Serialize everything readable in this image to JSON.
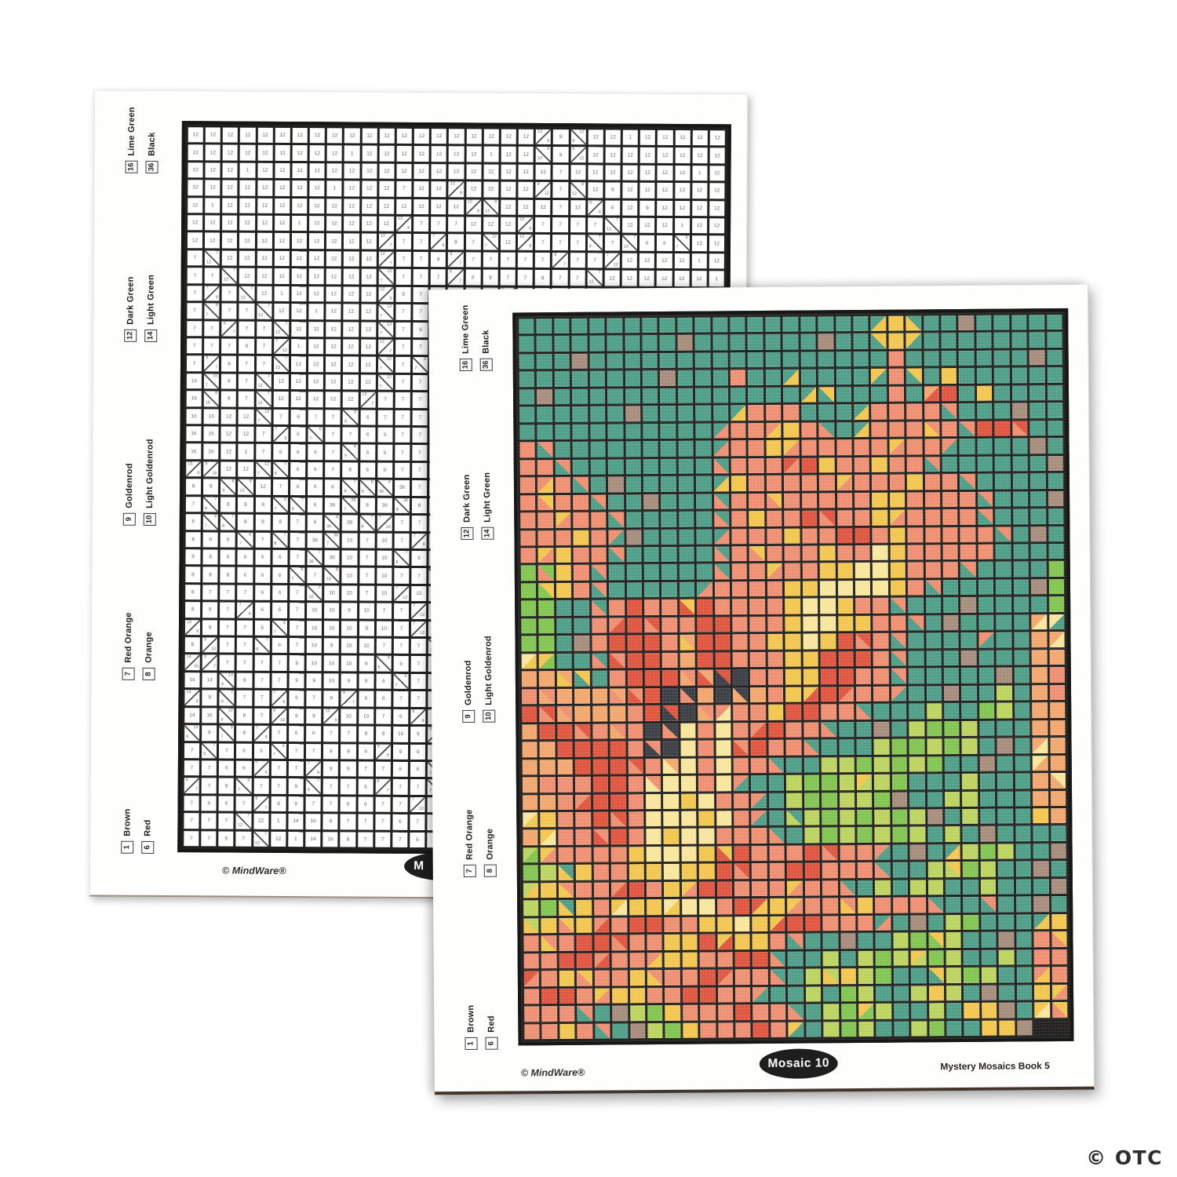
{
  "watermark": "© OTC",
  "legend_pairs": [
    [
      {
        "num": "16",
        "label": "Lime Green"
      },
      {
        "num": "36",
        "label": "Black"
      }
    ],
    [
      {
        "num": "12",
        "label": "Dark Green"
      },
      {
        "num": "14",
        "label": "Light Green"
      }
    ],
    [
      {
        "num": "9",
        "label": "Goldenrod"
      },
      {
        "num": "10",
        "label": "Light Goldenrod"
      }
    ],
    [
      {
        "num": "7",
        "label": "Red Orange"
      },
      {
        "num": "8",
        "label": "Orange"
      }
    ],
    [
      {
        "num": "1",
        "label": "Brown"
      },
      {
        "num": "6",
        "label": "Red"
      }
    ]
  ],
  "palette": {
    "1": "#a68d7c",
    "6": "#e0553f",
    "7": "#ef8f72",
    "8": "#f2a76e",
    "9": "#f2c64f",
    "10": "#f8e69c",
    "12": "#4f9e87",
    "14": "#bcd45f",
    "16": "#82c551",
    "36": "#3b3e44"
  },
  "back_page": {
    "copyright": "© MindWare®",
    "badge_label": "M"
  },
  "front_page": {
    "copyright": "© MindWare®",
    "badge_label": "Mosaic 10",
    "book_title": "Mystery Mosaics Book 5"
  },
  "grid": {
    "cols": 31,
    "rows": 41,
    "cells": [
      "12 12 12 12 12 12 12 12 12 12 12 12 12 12 12 12 12 12 12 12 12/9 9 12:9 12 12 1 12 12 12 12 12",
      "12 12 12 12 12 12 12 12 12 1 12 12 12 12 12 12 12 1 12 12 9:12 9 9/12 12 12 12 12 12 12 12 12",
      "12 12 12 1 12 12 12 12 12 12 12 12 12 12 12 12 12 12 12 12 12 7 12 12 12 12 12 12 12 1 12",
      "12 12 12 12 12 12 12 12 1 12 12 12 7 12 12 12/9 12 12 12 12 9/12 7 9:12 12 9 12 12 12 12 12 12",
      "12 1 12 12 12 12 12 12 12 12 12 12 12 12 12 12 12/9 9:12 12 12 12 7 12 8/6 6 12 9 12 12 12 12",
      "12 12 12 12 12 12 1 12 12 12 12 12 12/9 7 7 7 12 12 12 12/9 7 7 7 7 7:12 12 12 12 1 12 12",
      "12 12 12 12 12 12 12 12 12 12 12 12/7 7 7 7/9 9 7 12:7 12 12/9 7 7 7 7:9 7 7:12 6 6 6:7 12 12",
      "7 7:12 12 12 12 12 12 12 12 12 12 12/7 7 7 9 9/7 7 7 7 7 7 9/7 7 7 7/12 12 12 12 12 1 12",
      "7 7 7:12 12 12 12 12 12 12 12 12 12:7 7 7 7 6/7 6 9 7 7 9 7 7 7:12 12 12 12 12 12 12 1",
      "7 7/9 7 7:12 12 1 12 12 12 12 12 12/9 9 7 7 7 7 7 9/7 7 7 7 9 7 7 7:12 12 12 12 12 12",
      "7 9:7 7 7 7:12 12 12 1 12 12 12 12:7 7 7 9:7 7 7 7 7 7 9 9 7 7 7 7 7:12 12 12 12 1",
      "7 7 9/7 7 7 7:12 12 12 12 12 12 12:7 7 9 7 7 6 6:7 7 7 9 9/7 7 7 7 7 7:12 12 12 12 12",
      "7 7 7 9 7 7/12 1 12 12 12 12 12/7 7 7 7 9 7 7 6 6 7 9 7 7 7 7 7 7:12 12 1 12",
      "7 9/7 9 7 7 7:12 12 12 12 12 12 12:7 7 9:7 7 7 7 9 7 7 10 9 7 7 7 7 7 12 12 12 12",
      "16 16:7 9 7 7:12 12 12 12 12 12 12 12:7 7 7 9/7 7 7 9 9 10 10 9 7 7 7 7:12 12 12 12 12",
      "16 16 9:16 9 7 7:12 12 12 12 12 12 12/7 7 7 7 7 9 9 10 10 10 10 9 7 7:12 12 12 12 12 12",
      "1 16 16 16 12 12 12:7 7 6 7 7 9:6 6 7 7 7 7 9 10 10 9 7 7 7:12 12 12 12 1 12 12 12",
      "12 16 16 16 12 12 7 7/6 6 6:7 7 7 6 6 7 7 7 9 10 10 9 9 7 7 7:12 12 1 12 12 12 12",
      "8/10 10/12 16 16 12 1 7 6 6 6 7 8:9 6 6 7 7 9 9 10 9 6 6:7 7 7:12 12 12 12 12 7/12 12 12",
      "8 8/10 10/9 9/16 12 12 12:7 7:6 6 6 7 8 6 6 7 7 7 9 9 6 6 6 7 7:12 12 12 12 1 12 12 12",
      "8 8 8 8 8:9 9:12 12 7 6 6 6 7:8 8:6 6:36 36 7 7 9 9 6 6 7 7 7:12 12 12 12 12 12 1 12",
      "8 7 7 7:8 8 8 8 8:7 7:6 6 36 36:7 8 36 36:8 8 7 9 9/6 6 6/7 7 7 7/12 12 12 1 12 12 14 12",
      "8 7 6 6:7 7:8 8 8 8 7 6 6:36 36 7:8 7/10 7 7 9 6 6 7 7 12:7 12 12 12 14 12 12 16 14 12",
      "8 8 8 6 6 6:7 7 7:8 7 36 36:7 10 7 10 7 7/6 6 7 7 12:7 12 12 1 12 14 16 16 14 12 12 12",
      "8 8 8 8 6 6 6 6 7 7:36 36 10 7 10 7:6 6 7 7 12:7 12 12 12 14 16 16 14 16 14 12 1 12",
      "8/10 8 8 8 8 6 6 6 6:7 7 8:10 10 7 10 7 7 12:7 12 12 14 14 16 14 16 14 16 12 12 1 12 12",
      "10/8 8 8 7 7 7 6 6 7 7:10 10 10 7 10 7/12 12 12 14 16 16 14 9/14 14 16 12 12 12 14 12 12 12",
      "8 10:8 8 8 7 7/6 6 6 7 10 10 9 10 7 7 7/12 12 14 16 16 14 14 16 1 12 12 14 14 12 12 12",
      "8 8 10/9 9 7 7 6 6:7 7 10 10 10 9 10 7 7/12 12 12:14 14 16 14 16 14 16 14 1 12 14 12 12 12",
      "9 8 8 9/10 7 7 7:6 6 7 10 9 10 10 7 7 7 12:7 12 14 16 14 16 14 16 14 12 14 12 1 12 12",
      "12 12 14/16 9/7 7 7 7 7 9 10 10 10 9 9:6 6 7 7 7 6 6:7 7 7 7/12 12 1 12 12/9 14 16 14 12",
      "12 1 16 14 12:9 9 7 7 9 9 10 9 9 6 6:7 7 7 6 6 7 7 7 12:7 12 12 14 9:14 16 14 12 12",
      "1 12 14/9 9 7:9 7 7 7/6 6 7 9 9/7 6 6 7 7 7 9/7 7 7 12:7 12 14 12 14 14 12 12 14 12 12",
      "12 1 14 16 12:9 9 7 9/10 9 9 10/9 10 10 7 6 6/9 9 9/7 7 7 7:9 9 7 7 7 12:7 12 12 7:12 12 12",
      "1 12 14:9 9 9:7 9 7/6 7 6 6 7 7 9 9 10 9 9/6 6 6 7 7 7 12/7 12 1 12 14 16 12 12 12",
      "12/9 9 7 7:9 7 6 6 6:7 7 7 9 9 6 9/6 9 9 7 7:12 12 12 1 12 12 14 16 9:16 14 12 12 1 12",
      "7 9:7 7 7 6 6 7/6 7 7 7/9 9 9 7 7 6 6 12:7 12 12 14 12 14 16 14 9/14 16 14 12 12 14 12",
      "7 7 6/7 7 9 9:7 7 7 9 7:9 7 7 6 6/7 7 7 12:7 12 14 14:9 9 14 16 12 12 9:12 14 16 14 12 12",
      "7/9 7 7 6 6 7 9/7 9 9 7 7 6 6 7 7 7/12 12 12 14 12 16 14 12 12 14 9 14 12 1 12 12",
      "9 9/7 7 7 7 7:12 12 1 14 16 9 7 7 7 6 7 7 12:7 12 14 16 9/16 14 12 12 14 12 9 9 1 12",
      "9/10 9:7 7 7 9 7 7:12 12 1 14 16 9 7 7 7 6 7 9/12 12 14 16 14 12 12 14 16 12 12 9 9 1"
    ]
  }
}
